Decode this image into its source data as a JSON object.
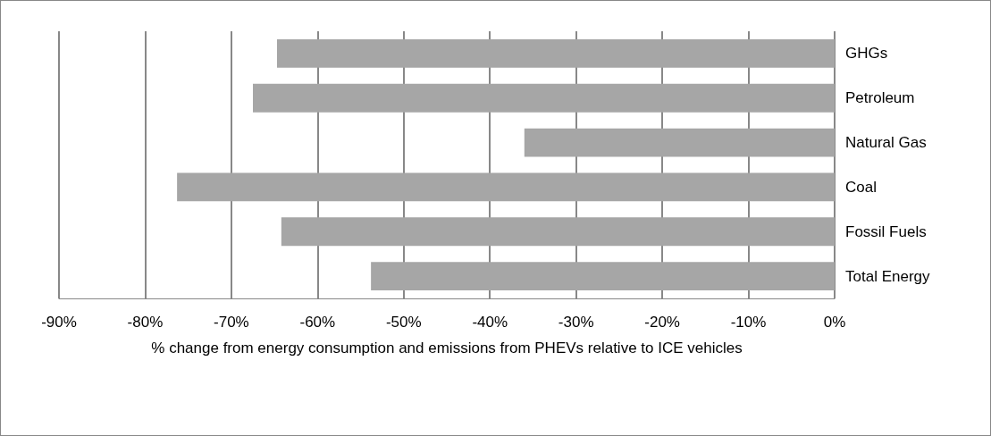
{
  "chart_data": {
    "type": "bar",
    "orientation": "horizontal",
    "xlabel": "% change from energy consumption and emissions from PHEVs relative to ICE vehicles",
    "categories": [
      "GHGs",
      "Petroleum",
      "Natural Gas",
      "Coal",
      "Fossil Fuels",
      "Total Energy"
    ],
    "values": [
      -64.7,
      -67.5,
      -36,
      -76.3,
      -64.2,
      -53.8
    ],
    "color": "#a6a6a6",
    "xlim": [
      -90,
      0
    ],
    "xticks": [
      {
        "value": -90,
        "label": "-90%"
      },
      {
        "value": -80,
        "label": "-80%"
      },
      {
        "value": -70,
        "label": "-70%"
      },
      {
        "value": -60,
        "label": "-60%"
      },
      {
        "value": -50,
        "label": "-50%"
      },
      {
        "value": -40,
        "label": "-40%"
      },
      {
        "value": -30,
        "label": "-30%"
      },
      {
        "value": -20,
        "label": "-20%"
      },
      {
        "value": -10,
        "label": "-10%"
      },
      {
        "value": 0,
        "label": "0%"
      }
    ],
    "grid": "x"
  }
}
